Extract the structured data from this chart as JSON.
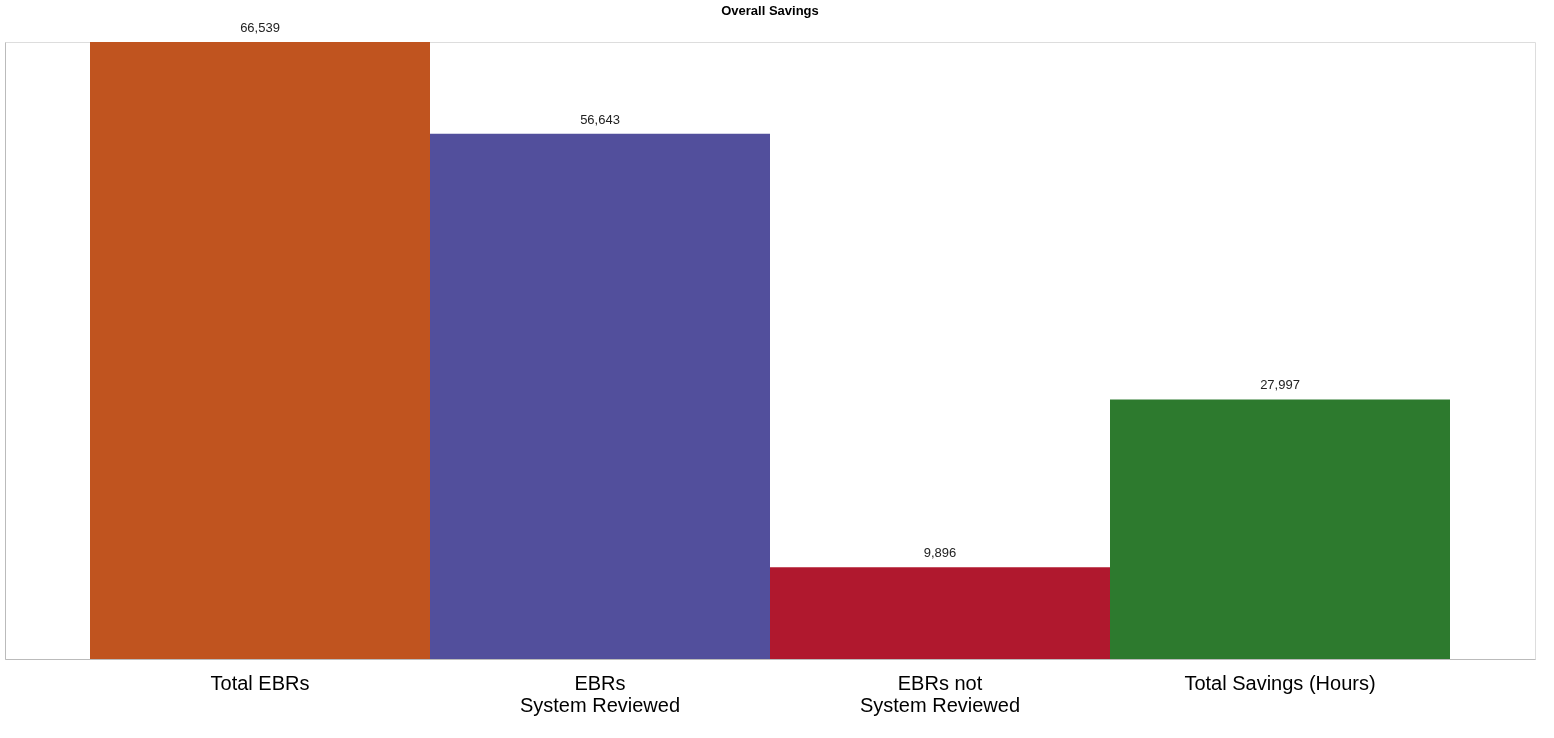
{
  "chart_data": {
    "type": "bar",
    "title": "Overall Savings",
    "categories": [
      "Total EBRs",
      "EBRs\nSystem Reviewed",
      "EBRs not\nSystem Reviewed",
      "Total Savings (Hours)"
    ],
    "values": [
      66539,
      56643,
      9896,
      27997
    ],
    "value_labels": [
      "66,539",
      "56,643",
      "9,896",
      "27,997"
    ],
    "colors": [
      "#c0541f",
      "#524f9c",
      "#b0182e",
      "#2d7a2e"
    ],
    "tick_labels": "x",
    "grid": false
  }
}
